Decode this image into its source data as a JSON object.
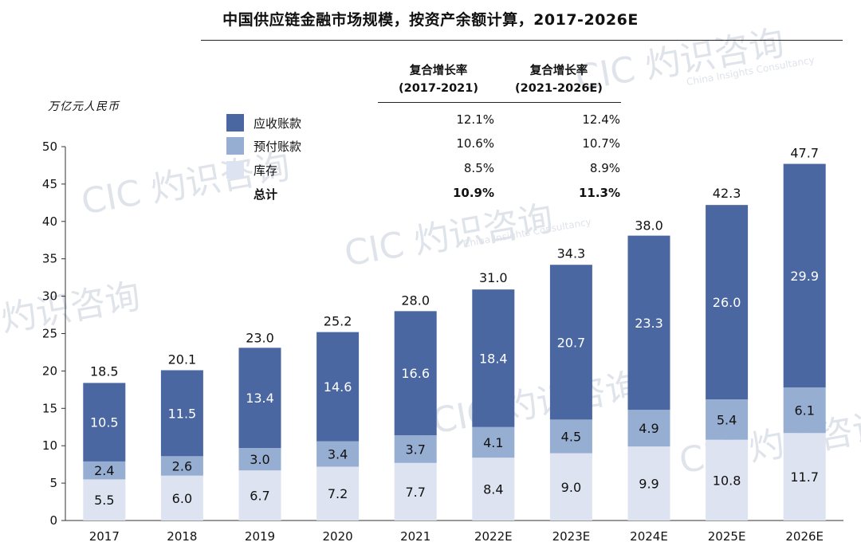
{
  "title": "中国供应链金融市场规模，按资产余额计算，2017-2026E",
  "unit_label": "万亿元人民币",
  "colors": {
    "receivables": "#4a67a1",
    "prepayments": "#97aed3",
    "inventory": "#dde3f0",
    "axis": "#333333"
  },
  "legend": [
    {
      "label": "应收账款",
      "color_key": "receivables"
    },
    {
      "label": "预付账款",
      "color_key": "prepayments"
    },
    {
      "label": "库存",
      "color_key": "inventory"
    },
    {
      "label": "总计",
      "color_key": ""
    }
  ],
  "cagr": {
    "headers": [
      {
        "line1": "复合增长率",
        "line2": "(2017-2021)"
      },
      {
        "line1": "复合增长率",
        "line2": "(2021-2026E)"
      }
    ],
    "rows": [
      {
        "a": "12.1%",
        "b": "12.4%"
      },
      {
        "a": "10.6%",
        "b": "10.7%"
      },
      {
        "a": "8.5%",
        "b": "8.9%"
      },
      {
        "a": "10.9%",
        "b": "11.3%"
      }
    ]
  },
  "watermark": {
    "mark": "CIC",
    "cn": "灼识咨询",
    "en": "China Insights Consultancy"
  },
  "chart_data": {
    "type": "bar",
    "stacked": true,
    "title": "中国供应链金融市场规模，按资产余额计算，2017-2026E",
    "ylabel": "万亿元人民币",
    "xlabel": "",
    "ylim": [
      0,
      50
    ],
    "yticks": [
      0,
      5,
      10,
      15,
      20,
      25,
      30,
      35,
      40,
      45,
      50
    ],
    "categories": [
      "2017",
      "2018",
      "2019",
      "2020",
      "2021",
      "2022E",
      "2023E",
      "2024E",
      "2025E",
      "2026E"
    ],
    "series": [
      {
        "name": "库存",
        "color_key": "inventory",
        "values": [
          5.5,
          6.0,
          6.7,
          7.2,
          7.7,
          8.4,
          9.0,
          9.9,
          10.8,
          11.7
        ]
      },
      {
        "name": "预付账款",
        "color_key": "prepayments",
        "values": [
          2.4,
          2.6,
          3.0,
          3.4,
          3.7,
          4.1,
          4.5,
          4.9,
          5.4,
          6.1
        ]
      },
      {
        "name": "应收账款",
        "color_key": "receivables",
        "values": [
          10.5,
          11.5,
          13.4,
          14.6,
          16.6,
          18.4,
          20.7,
          23.3,
          26.0,
          29.9
        ]
      }
    ],
    "totals": [
      18.5,
      20.1,
      23.0,
      25.2,
      28.0,
      31.0,
      34.3,
      38.0,
      42.3,
      47.7
    ],
    "grid": false,
    "legend_position": "top-left"
  }
}
